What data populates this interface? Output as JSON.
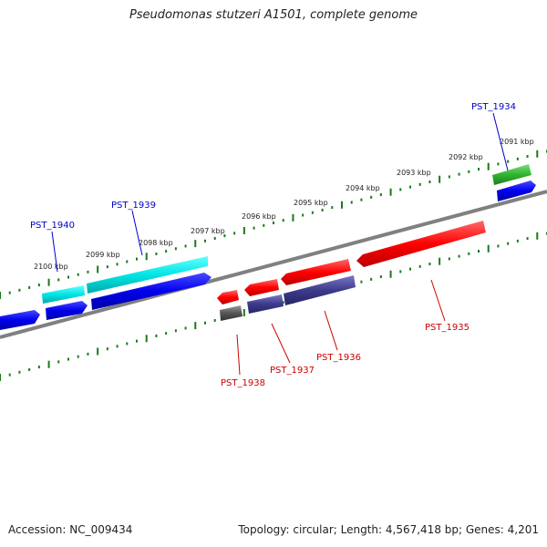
{
  "title": "Pseudomonas stutzeri A1501, complete genome",
  "footer": {
    "accession": "Accession: NC_009434",
    "stats": "Topology: circular; Length: 4,567,418 bp; Genes: 4,201"
  },
  "ticks": [
    "2100 kbp",
    "2099 kbp",
    "2098 kbp",
    "2097 kbp",
    "2096 kbp",
    "2095 kbp",
    "2094 kbp",
    "2093 kbp",
    "2092 kbp",
    "2091 kbp"
  ],
  "genes_forward": [
    {
      "label": "PST_1934",
      "color": "#0000cc"
    },
    {
      "label": "PST_1939",
      "color": "#0000cc"
    },
    {
      "label": "PST_1940",
      "color": "#0000cc"
    }
  ],
  "genes_reverse": [
    {
      "label": "PST_1935",
      "color": "#cc0000"
    },
    {
      "label": "PST_1936",
      "color": "#cc0000"
    },
    {
      "label": "PST_1937",
      "color": "#cc0000"
    },
    {
      "label": "PST_1938",
      "color": "#cc0000"
    }
  ],
  "colors": {
    "backbone": "#808080",
    "ticks": "#1a7a1a",
    "blue": "#0000ee",
    "cyan": "#00dddd",
    "red": "#ff0000",
    "purple": "#3d3a8a",
    "green": "#33bb33",
    "gray": "#555555"
  }
}
